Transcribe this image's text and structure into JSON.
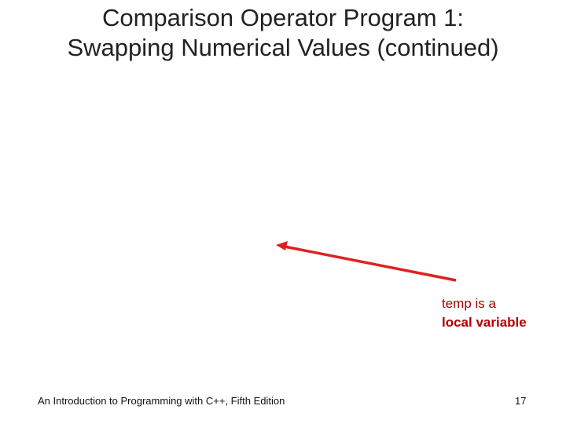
{
  "slide": {
    "title": [
      "Comparison Operator Program 1:",
      "Swapping Numerical Values (continued)"
    ],
    "annotation": {
      "line1": "temp is a",
      "line2": "local variable"
    },
    "footer": "An Introduction to Programming with C++, Fifth Edition",
    "page_number": 17
  }
}
